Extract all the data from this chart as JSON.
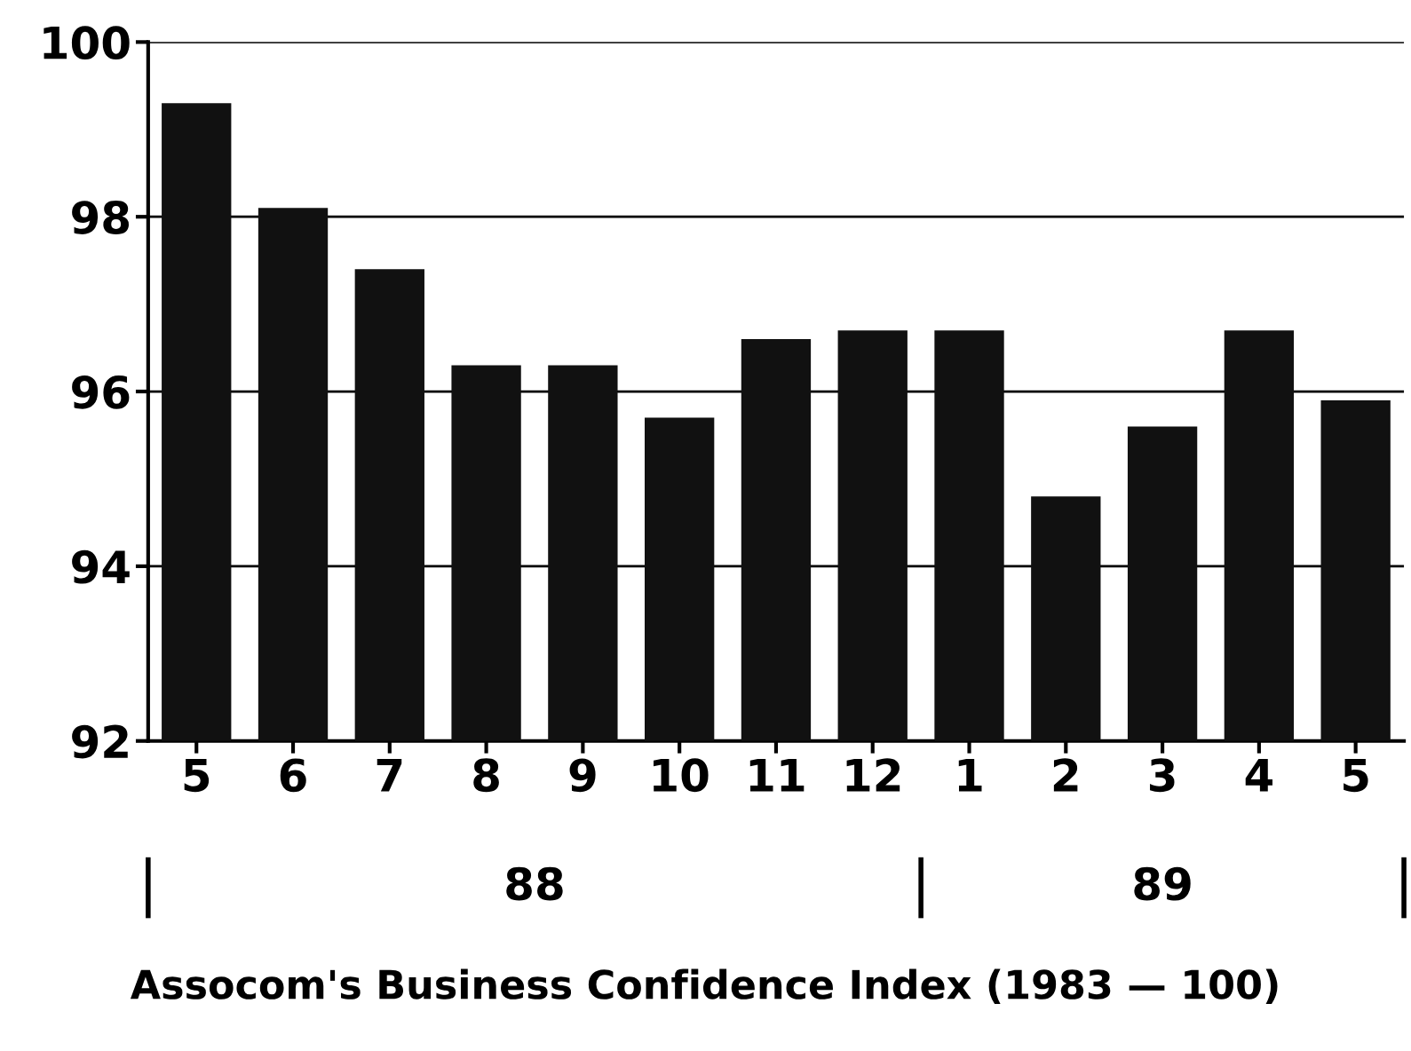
{
  "chart_data": {
    "type": "bar",
    "categories": [
      "5",
      "6",
      "7",
      "8",
      "9",
      "10",
      "11",
      "12",
      "1",
      "2",
      "3",
      "4",
      "5"
    ],
    "values": [
      99.3,
      98.1,
      97.4,
      96.3,
      96.3,
      95.7,
      96.6,
      96.7,
      96.7,
      94.8,
      95.6,
      96.7,
      95.9
    ],
    "color": "#111111",
    "ylim": [
      92,
      100
    ],
    "yticks": [
      92,
      94,
      96,
      98,
      100
    ],
    "grid": "y",
    "annotations": [
      "88",
      "89",
      "Assocom's Business Confidence Index (1983 — 100)"
    ]
  }
}
